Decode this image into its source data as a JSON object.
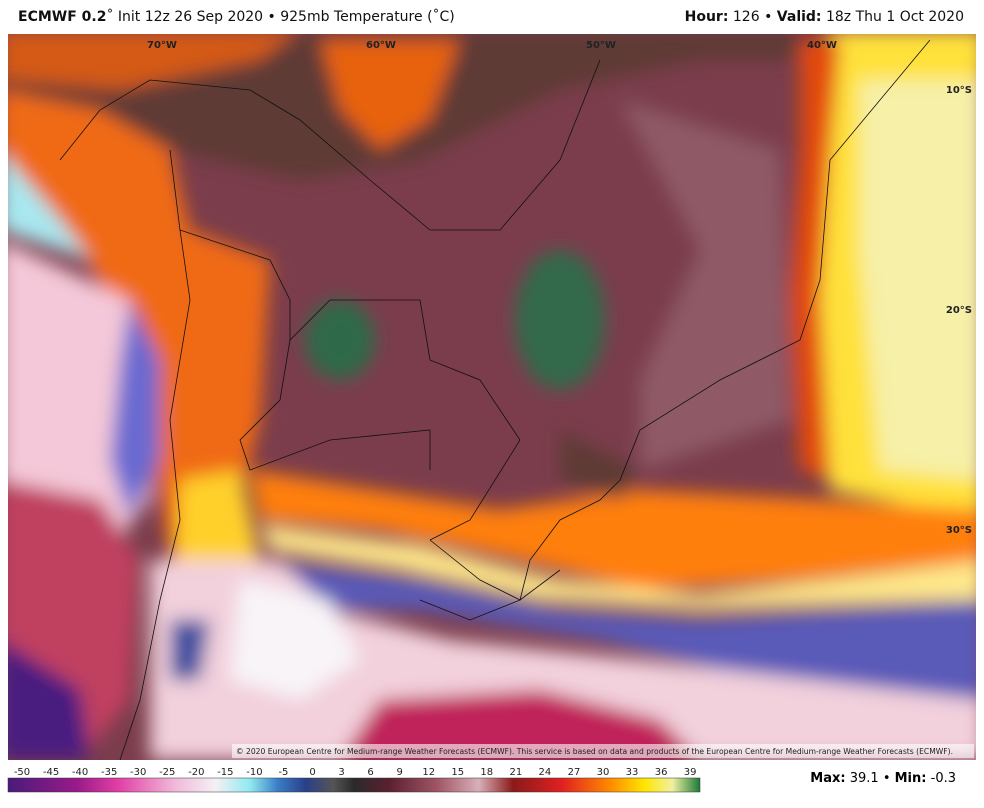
{
  "header": {
    "model": "ECMWF 0.2",
    "details": "˚ Init 12z 26 Sep 2020 • 925mb Temperature (˚C)",
    "hour_label": "Hour:",
    "hour": 126,
    "separator": "•",
    "valid_label": "Valid:",
    "valid": "18z Thu 1 Oct 2020"
  },
  "map": {
    "longitude_labels": [
      "70°W",
      "60°W",
      "50°W",
      "40°W"
    ],
    "latitude_labels": [
      "10°S",
      "20°S",
      "30°S"
    ],
    "credit": "© 2020 European Centre for Medium-range Weather Forecasts (ECMWF). This service is based on data and products of the European Centre for Medium-range Weather Forecasts (ECMWF)."
  },
  "colorbar": {
    "ticks": [
      -50,
      -45,
      -40,
      -35,
      -30,
      -25,
      -20,
      -15,
      -10,
      -5,
      0,
      3,
      6,
      9,
      12,
      15,
      18,
      21,
      24,
      27,
      30,
      33,
      36,
      39
    ]
  },
  "footer": {
    "max_label": "Max:",
    "max": 39.1,
    "separator": "•",
    "min_label": "Min:",
    "min": -0.3
  }
}
